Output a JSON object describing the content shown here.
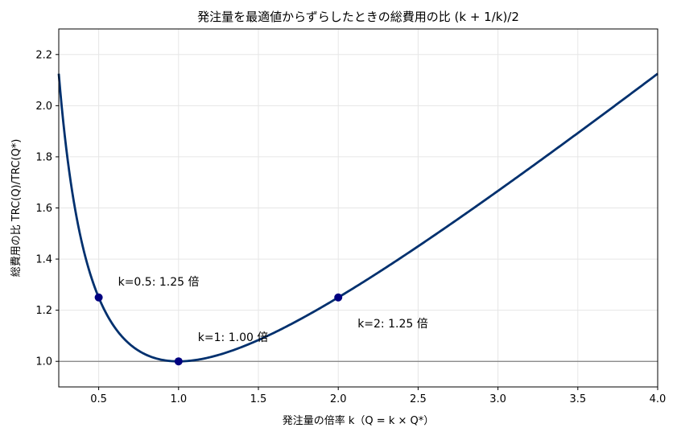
{
  "chart_data": {
    "type": "line",
    "title": "発注量を最適値からずらしたときの総費用の比 (k + 1/k)/2",
    "xlabel": "発注量の倍率 k（Q = k × Q*）",
    "ylabel": "総費用の比 TRC(Q)/TRC(Q*)",
    "xlim": [
      0.25,
      4.0
    ],
    "ylim": [
      0.9,
      2.3
    ],
    "x_ticks": [
      0.5,
      1.0,
      1.5,
      2.0,
      2.5,
      3.0,
      3.5,
      4.0
    ],
    "x_tick_labels": [
      "0.5",
      "1.0",
      "1.5",
      "2.0",
      "2.5",
      "3.0",
      "3.5",
      "4.0"
    ],
    "y_ticks": [
      1.0,
      1.2,
      1.4,
      1.6,
      1.8,
      2.0,
      2.2
    ],
    "y_tick_labels": [
      "1.0",
      "1.2",
      "1.4",
      "1.6",
      "1.8",
      "2.0",
      "2.2"
    ],
    "grid": true,
    "reference_line_y": 1.0,
    "series": [
      {
        "function": "(k + 1/k)/2",
        "x_start": 0.25,
        "x_end": 4.0,
        "color": "#00306e"
      }
    ],
    "points": [
      {
        "x": 0.5,
        "y": 1.25,
        "label": "k=0.5: 1.25 倍"
      },
      {
        "x": 1.0,
        "y": 1.0,
        "label": "k=1: 1.00 倍"
      },
      {
        "x": 2.0,
        "y": 1.25,
        "label": "k=2: 1.25 倍"
      }
    ],
    "point_color": "#000080",
    "reference_line_color": "#808080"
  }
}
